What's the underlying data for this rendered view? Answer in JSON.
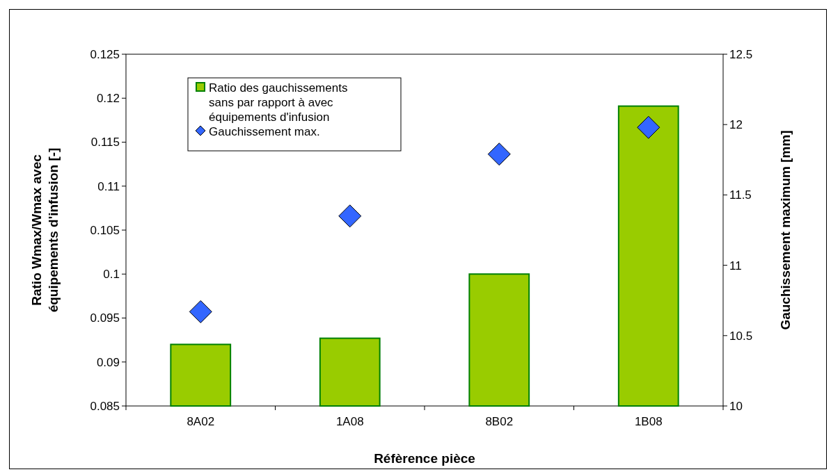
{
  "chart_data": {
    "type": "bar",
    "xlabel": "Réfèrence pièce",
    "ylabel": "Ratio Wmax/Wmax avec équipements d'infusion [-]",
    "y2label": "Gauchissement maximum [mm]",
    "categories": [
      "8A02",
      "1A08",
      "8B02",
      "1B08"
    ],
    "series": [
      {
        "name": "Ratio des gauchissements sans par rapport à avec équipements d'infusion",
        "color": "#99cc00",
        "values": [
          0.092,
          0.0927,
          0.1,
          0.1191
        ]
      },
      {
        "name": "Gauchissement max.",
        "type": "scatter",
        "axis": "y2",
        "marker": "diamond",
        "color": "#3366ff",
        "values": [
          10.67,
          11.35,
          11.79,
          11.98
        ]
      }
    ],
    "ylim": [
      0.085,
      0.125
    ],
    "yticks": [
      0.085,
      0.09,
      0.095,
      0.1,
      0.105,
      0.11,
      0.115,
      0.12,
      0.125
    ],
    "y2lim": [
      10,
      12.5
    ],
    "y2ticks": [
      10,
      10.5,
      11,
      11.5,
      12,
      12.5
    ],
    "grid": false,
    "legend": "top left"
  }
}
